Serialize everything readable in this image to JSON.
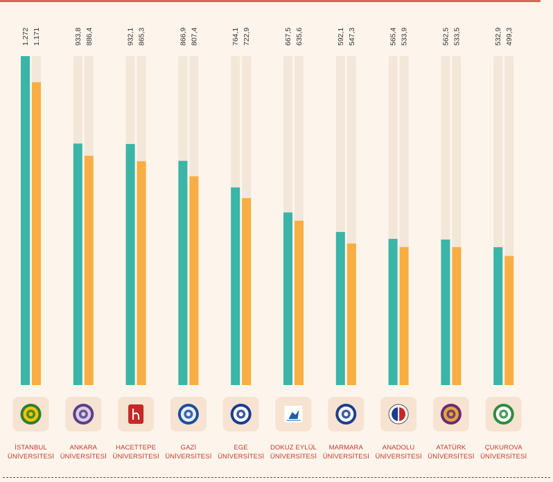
{
  "colors": {
    "series_a": "#3ab5a7",
    "series_b": "#f8ae42",
    "track": "#f3e7da",
    "value_text": "#333333",
    "label_text": "#c0392b",
    "logo_tile": "#f6e3d2"
  },
  "chart_data": {
    "type": "bar",
    "categories": [
      [
        "İSTANBUL",
        "ÜNİVERSİTESİ"
      ],
      [
        "ANKARA",
        "ÜNİVERSİTESİ"
      ],
      [
        "HACETTEPE",
        "ÜNİVERSİTESİ"
      ],
      [
        "GAZİ",
        "ÜNİVERSİTESİ"
      ],
      [
        "EGE",
        "ÜNİVERSİTESİ"
      ],
      [
        "DOKUZ EYLÜL",
        "ÜNİVERSİTESİ"
      ],
      [
        "MARMARA",
        "ÜNİVERSİTESİ"
      ],
      [
        "ANADOLU",
        "ÜNİVERSİTESİ"
      ],
      [
        "ATATÜRK",
        "ÜNİVERSİTESİ"
      ],
      [
        "ÇUKUROVA",
        "ÜNİVERSİTESİ"
      ]
    ],
    "series": [
      {
        "values": [
          1272,
          933.8,
          932.1,
          866.9,
          764.1,
          667.5,
          592.1,
          565.4,
          562.5,
          532.9
        ],
        "labels": [
          "1.272",
          "933,8",
          "932,1",
          "866,9",
          "764,1",
          "667,5",
          "592,1",
          "565,4",
          "562,5",
          "532,9"
        ]
      },
      {
        "values": [
          1171,
          886.4,
          865.3,
          807.4,
          722.9,
          635.6,
          547.3,
          533.9,
          533.5,
          499.3
        ],
        "labels": [
          "1.171",
          "886,4",
          "865,3",
          "807,4",
          "722,9",
          "635,6",
          "547,3",
          "533,9",
          "533,5",
          "499,3"
        ]
      }
    ],
    "ylim": [
      0,
      1272
    ],
    "grid": false,
    "legend": "none",
    "logos": [
      "istanbul-logo-icon",
      "ankara-logo-icon",
      "hacettepe-logo-icon",
      "gazi-logo-icon",
      "ege-logo-icon",
      "dokuz-eylul-logo-icon",
      "marmara-logo-icon",
      "anadolu-logo-icon",
      "ataturk-logo-icon",
      "cukurova-logo-icon"
    ]
  }
}
